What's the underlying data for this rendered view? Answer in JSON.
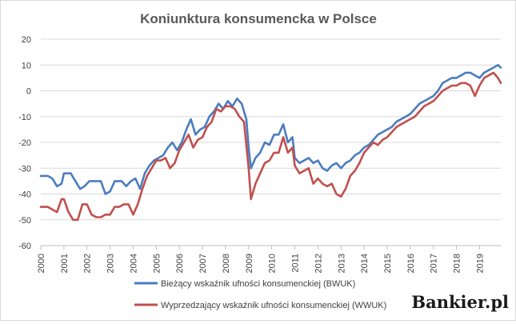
{
  "chart_data": {
    "type": "line",
    "title": "Koniunktura konsumencka w Polsce",
    "xlabel": "",
    "ylabel": "",
    "xlim": [
      2000,
      2019.92
    ],
    "ylim": [
      -60,
      20
    ],
    "y_ticks": [
      "20",
      "10",
      "0",
      "-10",
      "-20",
      "-30",
      "-40",
      "-50",
      "-60"
    ],
    "x_ticks": [
      "2000",
      "2001",
      "2002",
      "2003",
      "2004",
      "2005",
      "2006",
      "2007",
      "2008",
      "2009",
      "2010",
      "2011",
      "2012",
      "2013",
      "2014",
      "2015",
      "2016",
      "2017",
      "2018",
      "2019"
    ],
    "grid": true,
    "legend_position": "bottom",
    "series": [
      {
        "name": "Bieżący wskaźnik ufności konsumenckiej (BWUK)",
        "color": "#4a7dbf",
        "points": [
          [
            2000.0,
            -33
          ],
          [
            2000.3,
            -33
          ],
          [
            2000.5,
            -34
          ],
          [
            2000.7,
            -37
          ],
          [
            2000.9,
            -36
          ],
          [
            2001.0,
            -32
          ],
          [
            2001.3,
            -32
          ],
          [
            2001.5,
            -35
          ],
          [
            2001.7,
            -38
          ],
          [
            2001.9,
            -37
          ],
          [
            2002.1,
            -35
          ],
          [
            2002.3,
            -35
          ],
          [
            2002.6,
            -35
          ],
          [
            2002.8,
            -40
          ],
          [
            2003.0,
            -39
          ],
          [
            2003.2,
            -35
          ],
          [
            2003.5,
            -35
          ],
          [
            2003.7,
            -37
          ],
          [
            2003.9,
            -35
          ],
          [
            2004.1,
            -34
          ],
          [
            2004.3,
            -38
          ],
          [
            2004.5,
            -32
          ],
          [
            2004.7,
            -29
          ],
          [
            2004.9,
            -27
          ],
          [
            2005.1,
            -26
          ],
          [
            2005.3,
            -25
          ],
          [
            2005.5,
            -22
          ],
          [
            2005.7,
            -20
          ],
          [
            2005.9,
            -23
          ],
          [
            2006.1,
            -20
          ],
          [
            2006.3,
            -15
          ],
          [
            2006.5,
            -11
          ],
          [
            2006.7,
            -17
          ],
          [
            2006.9,
            -15
          ],
          [
            2007.1,
            -14
          ],
          [
            2007.3,
            -10
          ],
          [
            2007.5,
            -8
          ],
          [
            2007.7,
            -5
          ],
          [
            2007.9,
            -7
          ],
          [
            2008.1,
            -4
          ],
          [
            2008.3,
            -6
          ],
          [
            2008.5,
            -3
          ],
          [
            2008.7,
            -5
          ],
          [
            2008.9,
            -11
          ],
          [
            2009.0,
            -22
          ],
          [
            2009.1,
            -30
          ],
          [
            2009.3,
            -26
          ],
          [
            2009.5,
            -24
          ],
          [
            2009.7,
            -20
          ],
          [
            2009.9,
            -21
          ],
          [
            2010.1,
            -17
          ],
          [
            2010.3,
            -17
          ],
          [
            2010.5,
            -13
          ],
          [
            2010.7,
            -20
          ],
          [
            2010.9,
            -18
          ],
          [
            2011.0,
            -26
          ],
          [
            2011.2,
            -28
          ],
          [
            2011.4,
            -27
          ],
          [
            2011.6,
            -26
          ],
          [
            2011.8,
            -28
          ],
          [
            2012.0,
            -27
          ],
          [
            2012.2,
            -30
          ],
          [
            2012.4,
            -31
          ],
          [
            2012.6,
            -29
          ],
          [
            2012.8,
            -28
          ],
          [
            2013.0,
            -30
          ],
          [
            2013.2,
            -28
          ],
          [
            2013.4,
            -27
          ],
          [
            2013.6,
            -25
          ],
          [
            2013.8,
            -24
          ],
          [
            2014.0,
            -22
          ],
          [
            2014.2,
            -21
          ],
          [
            2014.4,
            -19
          ],
          [
            2014.6,
            -17
          ],
          [
            2014.8,
            -16
          ],
          [
            2015.0,
            -15
          ],
          [
            2015.2,
            -14
          ],
          [
            2015.4,
            -12
          ],
          [
            2015.6,
            -11
          ],
          [
            2015.8,
            -10
          ],
          [
            2016.0,
            -9
          ],
          [
            2016.2,
            -7
          ],
          [
            2016.4,
            -5
          ],
          [
            2016.6,
            -4
          ],
          [
            2016.8,
            -3
          ],
          [
            2017.0,
            -2
          ],
          [
            2017.2,
            0
          ],
          [
            2017.4,
            3
          ],
          [
            2017.6,
            4
          ],
          [
            2017.8,
            5
          ],
          [
            2018.0,
            5
          ],
          [
            2018.2,
            6
          ],
          [
            2018.4,
            7
          ],
          [
            2018.6,
            7
          ],
          [
            2018.8,
            6
          ],
          [
            2019.0,
            5
          ],
          [
            2019.2,
            7
          ],
          [
            2019.4,
            8
          ],
          [
            2019.6,
            9
          ],
          [
            2019.8,
            10
          ],
          [
            2019.92,
            9
          ]
        ]
      },
      {
        "name": "Wyprzedzający wskaźnik ufności konsumenckiej (WWUK)",
        "color": "#c0504d",
        "points": [
          [
            2000.0,
            -45
          ],
          [
            2000.3,
            -45
          ],
          [
            2000.5,
            -46
          ],
          [
            2000.7,
            -47
          ],
          [
            2000.9,
            -42
          ],
          [
            2001.0,
            -42
          ],
          [
            2001.2,
            -47
          ],
          [
            2001.4,
            -50
          ],
          [
            2001.6,
            -50
          ],
          [
            2001.8,
            -44
          ],
          [
            2002.0,
            -44
          ],
          [
            2002.2,
            -48
          ],
          [
            2002.4,
            -49
          ],
          [
            2002.6,
            -49
          ],
          [
            2002.8,
            -48
          ],
          [
            2003.0,
            -48
          ],
          [
            2003.2,
            -45
          ],
          [
            2003.4,
            -45
          ],
          [
            2003.6,
            -44
          ],
          [
            2003.8,
            -44
          ],
          [
            2004.0,
            -48
          ],
          [
            2004.2,
            -44
          ],
          [
            2004.4,
            -38
          ],
          [
            2004.6,
            -33
          ],
          [
            2004.8,
            -30
          ],
          [
            2005.0,
            -27
          ],
          [
            2005.2,
            -27
          ],
          [
            2005.4,
            -26
          ],
          [
            2005.6,
            -30
          ],
          [
            2005.8,
            -28
          ],
          [
            2006.0,
            -23
          ],
          [
            2006.2,
            -20
          ],
          [
            2006.4,
            -17
          ],
          [
            2006.6,
            -22
          ],
          [
            2006.8,
            -19
          ],
          [
            2007.0,
            -18
          ],
          [
            2007.2,
            -14
          ],
          [
            2007.4,
            -12
          ],
          [
            2007.6,
            -7
          ],
          [
            2007.8,
            -8
          ],
          [
            2008.0,
            -6
          ],
          [
            2008.2,
            -6
          ],
          [
            2008.4,
            -7
          ],
          [
            2008.6,
            -10
          ],
          [
            2008.8,
            -12
          ],
          [
            2009.0,
            -30
          ],
          [
            2009.1,
            -42
          ],
          [
            2009.3,
            -36
          ],
          [
            2009.5,
            -32
          ],
          [
            2009.7,
            -28
          ],
          [
            2009.9,
            -27
          ],
          [
            2010.1,
            -24
          ],
          [
            2010.3,
            -24
          ],
          [
            2010.5,
            -18
          ],
          [
            2010.7,
            -24
          ],
          [
            2010.9,
            -22
          ],
          [
            2011.0,
            -29
          ],
          [
            2011.2,
            -32
          ],
          [
            2011.4,
            -31
          ],
          [
            2011.6,
            -30
          ],
          [
            2011.8,
            -36
          ],
          [
            2012.0,
            -34
          ],
          [
            2012.2,
            -36
          ],
          [
            2012.4,
            -37
          ],
          [
            2012.6,
            -36
          ],
          [
            2012.8,
            -40
          ],
          [
            2013.0,
            -41
          ],
          [
            2013.2,
            -38
          ],
          [
            2013.4,
            -33
          ],
          [
            2013.6,
            -31
          ],
          [
            2013.8,
            -28
          ],
          [
            2014.0,
            -24
          ],
          [
            2014.2,
            -22
          ],
          [
            2014.4,
            -20
          ],
          [
            2014.6,
            -21
          ],
          [
            2014.8,
            -19
          ],
          [
            2015.0,
            -18
          ],
          [
            2015.2,
            -16
          ],
          [
            2015.4,
            -14
          ],
          [
            2015.6,
            -13
          ],
          [
            2015.8,
            -12
          ],
          [
            2016.0,
            -11
          ],
          [
            2016.2,
            -10
          ],
          [
            2016.4,
            -8
          ],
          [
            2016.6,
            -6
          ],
          [
            2016.8,
            -5
          ],
          [
            2017.0,
            -4
          ],
          [
            2017.2,
            -2
          ],
          [
            2017.4,
            0
          ],
          [
            2017.6,
            1
          ],
          [
            2017.8,
            2
          ],
          [
            2018.0,
            2
          ],
          [
            2018.2,
            3
          ],
          [
            2018.4,
            3
          ],
          [
            2018.6,
            2
          ],
          [
            2018.8,
            -2
          ],
          [
            2019.0,
            2
          ],
          [
            2019.2,
            5
          ],
          [
            2019.4,
            6
          ],
          [
            2019.6,
            7
          ],
          [
            2019.8,
            5
          ],
          [
            2019.92,
            3
          ]
        ]
      }
    ]
  },
  "brand": {
    "logo_text": "Bankier.pl"
  }
}
